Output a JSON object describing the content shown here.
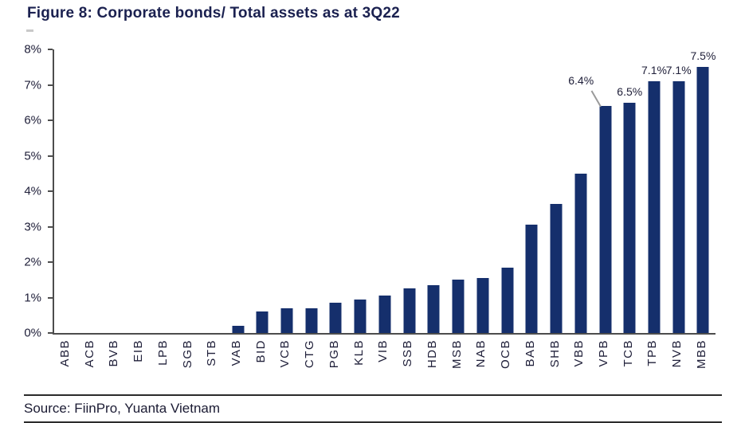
{
  "title": "Figure 8: Corporate bonds/ Total assets as at 3Q22",
  "source": "Source: FiinPro, Yuanta Vietnam",
  "colors": {
    "bar": "#152F6C",
    "title_text": "#1B2150",
    "axis_line": "#4D4D4D",
    "label_text": "#20203A",
    "leader_line": "#9A9A9A"
  },
  "chart_data": {
    "type": "bar",
    "title": "Figure 8: Corporate bonds/ Total assets as at 3Q22",
    "xlabel": "",
    "ylabel": "",
    "ylim": [
      0,
      8
    ],
    "yticks": [
      "0%",
      "1%",
      "2%",
      "3%",
      "4%",
      "5%",
      "6%",
      "7%",
      "8%"
    ],
    "grid": false,
    "legend": "none",
    "categories": [
      "ABB",
      "ACB",
      "BVB",
      "EIB",
      "LPB",
      "SGB",
      "STB",
      "VAB",
      "BID",
      "VCB",
      "CTG",
      "PGB",
      "KLB",
      "VIB",
      "SSB",
      "HDB",
      "MSB",
      "NAB",
      "OCB",
      "BAB",
      "SHB",
      "VBB",
      "VPB",
      "TCB",
      "TPB",
      "NVB",
      "MBB"
    ],
    "values": [
      0,
      0,
      0,
      0,
      0,
      0,
      0,
      0.2,
      0.6,
      0.7,
      0.7,
      0.85,
      0.95,
      1.05,
      1.25,
      1.35,
      1.5,
      1.55,
      1.85,
      3.05,
      3.65,
      4.5,
      6.4,
      6.5,
      7.1,
      7.1,
      7.5
    ],
    "annotations": [
      {
        "category": "VPB",
        "text": "6.4%",
        "callout": true
      },
      {
        "category": "TCB",
        "text": "6.5%"
      },
      {
        "category": "TPB",
        "text": "7.1%"
      },
      {
        "category": "NVB",
        "text": "7.1%"
      },
      {
        "category": "MBB",
        "text": "7.5%"
      }
    ]
  }
}
